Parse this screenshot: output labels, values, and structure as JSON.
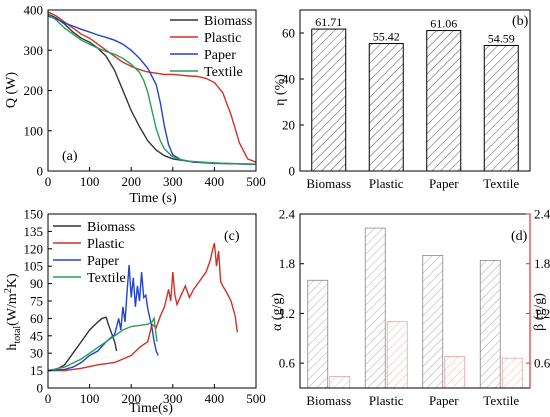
{
  "colors": {
    "biomass": "#333333",
    "plastic": "#cc3328",
    "paper": "#2244cc",
    "textile": "#2a9d5c",
    "alpha_bar": "#888888",
    "beta_bar": "#e8aaaa",
    "beta_axis": "#e03030"
  },
  "chart_data": [
    {
      "panel": "(a)",
      "type": "line",
      "xlabel": "Time (s)",
      "ylabel": "Q (W)",
      "xlim": [
        0,
        500
      ],
      "ylim": [
        0,
        400
      ],
      "xticks": [
        0,
        100,
        200,
        300,
        400,
        500
      ],
      "yticks": [
        0,
        100,
        200,
        300,
        400
      ],
      "legend": "top-right",
      "series": [
        {
          "name": "Biomass",
          "color": "#333333",
          "points": [
            [
              0,
              390
            ],
            [
              20,
              380
            ],
            [
              40,
              365
            ],
            [
              60,
              345
            ],
            [
              80,
              330
            ],
            [
              100,
              320
            ],
            [
              120,
              305
            ],
            [
              140,
              285
            ],
            [
              160,
              250
            ],
            [
              180,
              200
            ],
            [
              200,
              150
            ],
            [
              220,
              110
            ],
            [
              240,
              75
            ],
            [
              260,
              52
            ],
            [
              280,
              38
            ],
            [
              300,
              30
            ],
            [
              350,
              22
            ],
            [
              400,
              20
            ],
            [
              450,
              18
            ],
            [
              500,
              17
            ]
          ]
        },
        {
          "name": "Plastic",
          "color": "#cc3328",
          "points": [
            [
              0,
              395
            ],
            [
              20,
              385
            ],
            [
              40,
              370
            ],
            [
              60,
              355
            ],
            [
              80,
              340
            ],
            [
              100,
              330
            ],
            [
              120,
              315
            ],
            [
              140,
              300
            ],
            [
              160,
              285
            ],
            [
              180,
              270
            ],
            [
              200,
              260
            ],
            [
              220,
              252
            ],
            [
              240,
              246
            ],
            [
              260,
              243
            ],
            [
              280,
              240
            ],
            [
              300,
              240
            ],
            [
              320,
              238
            ],
            [
              340,
              236
            ],
            [
              360,
              235
            ],
            [
              380,
              230
            ],
            [
              400,
              220
            ],
            [
              420,
              195
            ],
            [
              440,
              140
            ],
            [
              460,
              70
            ],
            [
              480,
              30
            ],
            [
              500,
              22
            ]
          ]
        },
        {
          "name": "Paper",
          "color": "#2244cc",
          "points": [
            [
              0,
              385
            ],
            [
              20,
              378
            ],
            [
              40,
              368
            ],
            [
              60,
              360
            ],
            [
              80,
              352
            ],
            [
              100,
              345
            ],
            [
              120,
              338
            ],
            [
              140,
              332
            ],
            [
              160,
              325
            ],
            [
              180,
              315
            ],
            [
              200,
              300
            ],
            [
              220,
              280
            ],
            [
              240,
              255
            ],
            [
              260,
              215
            ],
            [
              270,
              170
            ],
            [
              280,
              110
            ],
            [
              290,
              65
            ],
            [
              300,
              40
            ],
            [
              320,
              28
            ],
            [
              350,
              22
            ],
            [
              400,
              19
            ],
            [
              450,
              18
            ],
            [
              500,
              17
            ]
          ]
        },
        {
          "name": "Textile",
          "color": "#2a9d5c",
          "points": [
            [
              0,
              390
            ],
            [
              20,
              375
            ],
            [
              40,
              355
            ],
            [
              60,
              340
            ],
            [
              80,
              325
            ],
            [
              100,
              315
            ],
            [
              120,
              305
            ],
            [
              140,
              297
            ],
            [
              160,
              290
            ],
            [
              180,
              280
            ],
            [
              200,
              265
            ],
            [
              220,
              245
            ],
            [
              230,
              225
            ],
            [
              240,
              195
            ],
            [
              250,
              150
            ],
            [
              260,
              105
            ],
            [
              270,
              75
            ],
            [
              280,
              55
            ],
            [
              300,
              35
            ],
            [
              330,
              25
            ],
            [
              400,
              20
            ],
            [
              500,
              17
            ]
          ]
        }
      ]
    },
    {
      "panel": "(b)",
      "type": "bar",
      "ylabel": "η (%)",
      "ylim": [
        0,
        70
      ],
      "yticks": [
        0,
        20,
        40,
        60
      ],
      "categories": [
        "Biomass",
        "Plastic",
        "Paper",
        "Textile"
      ],
      "values": [
        61.71,
        55.42,
        61.06,
        54.59
      ],
      "value_labels": [
        "61.71",
        "55.42",
        "61.06",
        "54.59"
      ]
    },
    {
      "panel": "(c)",
      "type": "line",
      "xlabel": "Time(s)",
      "ylabel_main": "h",
      "ylabel_sub": "total",
      "ylabel_rest": "(W/m",
      "ylabel_sup": "2",
      "ylabel_end": "K)",
      "xlim": [
        0,
        500
      ],
      "ylim": [
        0,
        150
      ],
      "xticks": [
        0,
        100,
        200,
        300,
        400,
        500
      ],
      "yticks": [
        0,
        15,
        30,
        45,
        60,
        75,
        90,
        105,
        120,
        135,
        150
      ],
      "legend": "top-left",
      "series": [
        {
          "name": "Biomass",
          "color": "#333333",
          "points": [
            [
              0,
              15
            ],
            [
              20,
              16
            ],
            [
              40,
              20
            ],
            [
              60,
              30
            ],
            [
              80,
              40
            ],
            [
              100,
              50
            ],
            [
              120,
              57
            ],
            [
              130,
              60
            ],
            [
              140,
              61
            ],
            [
              145,
              55
            ],
            [
              150,
              50
            ],
            [
              160,
              40
            ],
            [
              165,
              32
            ]
          ]
        },
        {
          "name": "Plastic",
          "color": "#cc3328",
          "points": [
            [
              0,
              15
            ],
            [
              40,
              15
            ],
            [
              80,
              17
            ],
            [
              120,
              20
            ],
            [
              160,
              22
            ],
            [
              200,
              28
            ],
            [
              220,
              35
            ],
            [
              240,
              40
            ],
            [
              250,
              55
            ],
            [
              260,
              52
            ],
            [
              270,
              62
            ],
            [
              280,
              70
            ],
            [
              290,
              85
            ],
            [
              295,
              75
            ],
            [
              300,
              100
            ],
            [
              305,
              80
            ],
            [
              310,
              72
            ],
            [
              320,
              80
            ],
            [
              330,
              88
            ],
            [
              340,
              78
            ],
            [
              350,
              85
            ],
            [
              360,
              90
            ],
            [
              370,
              95
            ],
            [
              380,
              100
            ],
            [
              390,
              110
            ],
            [
              395,
              118
            ],
            [
              400,
              125
            ],
            [
              405,
              105
            ],
            [
              410,
              118
            ],
            [
              415,
              92
            ],
            [
              420,
              88
            ],
            [
              430,
              82
            ],
            [
              440,
              75
            ],
            [
              450,
              62
            ],
            [
              455,
              48
            ]
          ]
        },
        {
          "name": "Paper",
          "color": "#2244cc",
          "points": [
            [
              0,
              15
            ],
            [
              40,
              16
            ],
            [
              60,
              18
            ],
            [
              80,
              22
            ],
            [
              100,
              28
            ],
            [
              120,
              32
            ],
            [
              140,
              40
            ],
            [
              160,
              46
            ],
            [
              170,
              60
            ],
            [
              175,
              50
            ],
            [
              180,
              70
            ],
            [
              185,
              57
            ],
            [
              190,
              82
            ],
            [
              195,
              106
            ],
            [
              200,
              78
            ],
            [
              205,
              95
            ],
            [
              210,
              70
            ],
            [
              215,
              88
            ],
            [
              220,
              75
            ],
            [
              225,
              100
            ],
            [
              230,
              78
            ],
            [
              235,
              80
            ],
            [
              240,
              68
            ],
            [
              245,
              60
            ],
            [
              250,
              52
            ],
            [
              255,
              40
            ],
            [
              260,
              32
            ],
            [
              265,
              28
            ]
          ]
        },
        {
          "name": "Textile",
          "color": "#2a9d5c",
          "points": [
            [
              0,
              15
            ],
            [
              40,
              18
            ],
            [
              80,
              25
            ],
            [
              120,
              35
            ],
            [
              160,
              45
            ],
            [
              180,
              50
            ],
            [
              200,
              53
            ],
            [
              220,
              54
            ],
            [
              240,
              55
            ],
            [
              250,
              57
            ],
            [
              255,
              60
            ],
            [
              260,
              45
            ],
            [
              262,
              40
            ]
          ]
        }
      ]
    },
    {
      "panel": "(d)",
      "type": "bar",
      "ylabel_left": "α (g/g)",
      "ylabel_right": "β (g/g)",
      "ylim": [
        0.3,
        2.4
      ],
      "yticks": [
        0.6,
        1.2,
        1.8,
        2.4
      ],
      "categories": [
        "Biomass",
        "Plastic",
        "Paper",
        "Textile"
      ],
      "series": [
        {
          "name": "α",
          "values": [
            1.6,
            2.23,
            1.9,
            1.84
          ]
        },
        {
          "name": "β",
          "values": [
            0.44,
            1.1,
            0.68,
            0.66
          ]
        }
      ]
    }
  ]
}
